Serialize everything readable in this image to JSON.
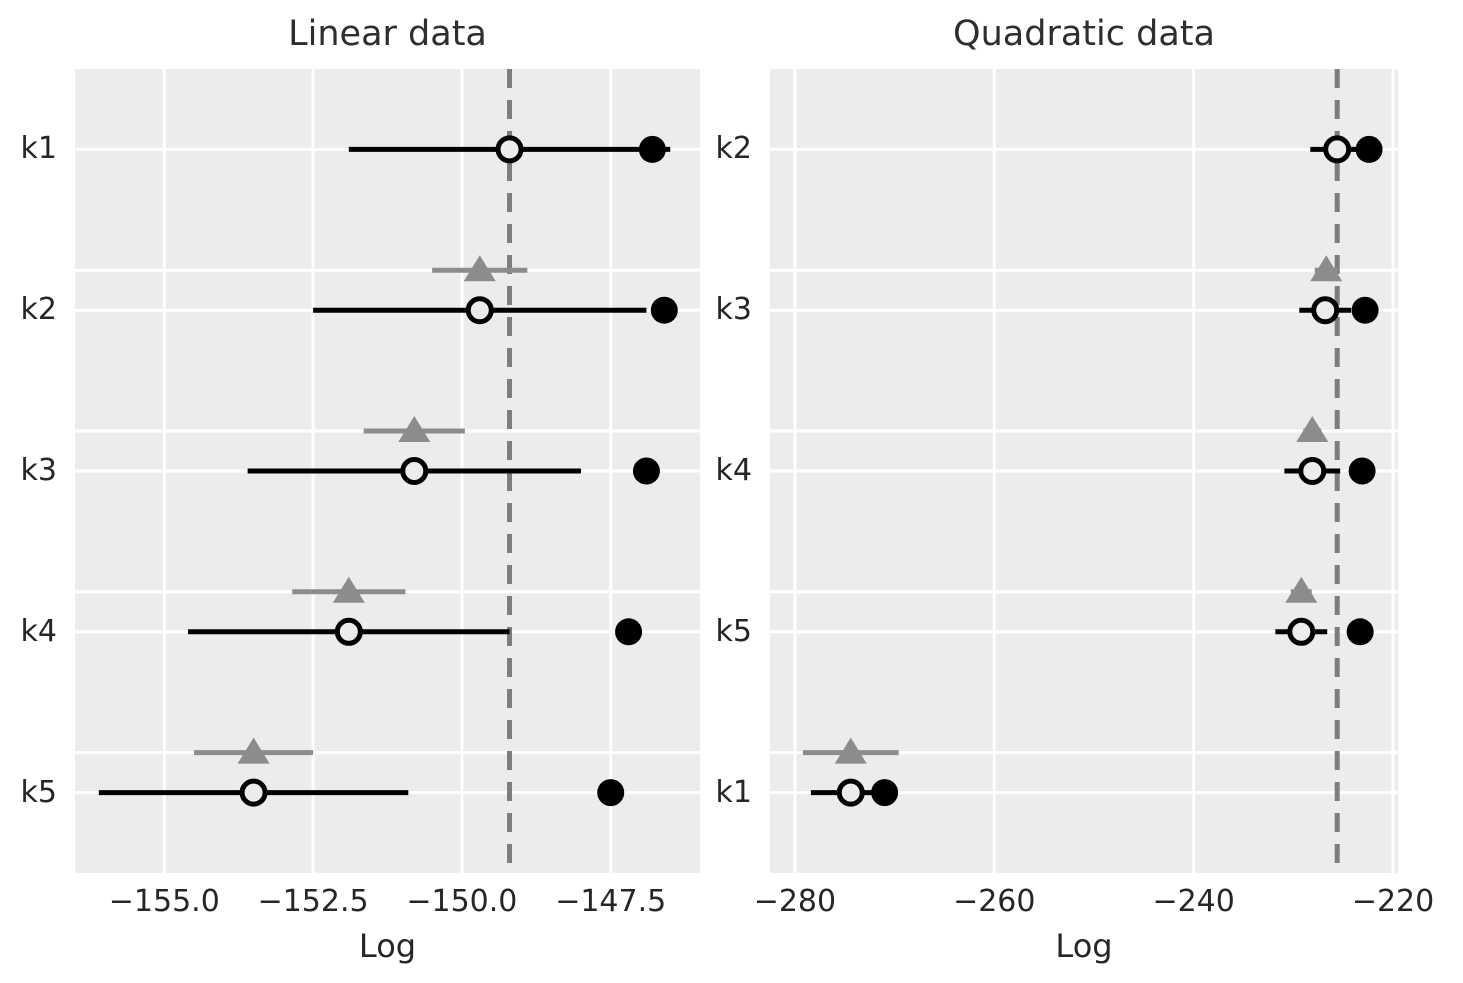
{
  "figure": {
    "background": "#ffffff",
    "description": "Model comparison forest plots: LOO/WAIC (log scale) per model order k1-k5, open circle = out-of-sample elpd with SE bar, filled circle = in-sample elpd, gray triangle = elpd difference vs top-ranked model with its SE, dashed line = elpd of best model"
  },
  "style": {
    "axes_bg": "#ececec",
    "grid_color": "#ffffff",
    "errorbar_color": "#000000",
    "open_circle_stroke": "#000000",
    "filled_circle_color": "#000000",
    "triangle_color": "#8c8c8c",
    "triangle_bar_color": "#8c8c8c",
    "dashed_line_color": "#7d7d7d",
    "text_color": "#262626"
  },
  "chart_data": [
    {
      "type": "scatter",
      "id": "linear",
      "title": "Linear data",
      "xlabel": "Log",
      "xlim": [
        -156.5,
        -146.0
      ],
      "xticks": [
        -155.0,
        -152.5,
        -150.0,
        -147.5
      ],
      "xtick_labels": [
        "−155.0",
        "−152.5",
        "−150.0",
        "−147.5"
      ],
      "categories": [
        "k1",
        "k2",
        "k3",
        "k4",
        "k5"
      ],
      "dashed_vline_x": -149.2,
      "grid": true,
      "legend": false,
      "series": [
        {
          "name": "elpd_loo (open circle)",
          "marker": "open-circle",
          "values": [
            -149.2,
            -149.7,
            -150.8,
            -151.9,
            -153.5
          ],
          "se": [
            2.7,
            2.8,
            2.8,
            2.7,
            2.6
          ]
        },
        {
          "name": "in-sample elpd (filled circle)",
          "marker": "filled-circle",
          "values": [
            -146.8,
            -146.6,
            -146.9,
            -147.2,
            -147.5
          ]
        },
        {
          "name": "elpd difference vs best model (gray triangle)",
          "marker": "triangle",
          "values": [
            null,
            -149.7,
            -150.8,
            -151.9,
            -153.5
          ],
          "se": [
            null,
            0.8,
            0.85,
            0.95,
            1.0
          ]
        }
      ]
    },
    {
      "type": "scatter",
      "id": "quadratic",
      "title": "Quadratic data",
      "xlabel": "Log",
      "xlim": [
        -282.5,
        -219.5
      ],
      "xticks": [
        -280,
        -260,
        -240,
        -220
      ],
      "xtick_labels": [
        "−280",
        "−260",
        "−240",
        "−220"
      ],
      "categories": [
        "k2",
        "k3",
        "k4",
        "k5",
        "k1"
      ],
      "dashed_vline_x": -225.6,
      "grid": true,
      "legend": false,
      "series": [
        {
          "name": "elpd_loo (open circle)",
          "marker": "open-circle",
          "values": [
            -225.6,
            -226.8,
            -228.1,
            -229.2,
            -274.4
          ],
          "se": [
            2.7,
            2.6,
            2.8,
            2.6,
            4.0
          ]
        },
        {
          "name": "in-sample elpd (filled circle)",
          "marker": "filled-circle",
          "values": [
            -222.4,
            -222.8,
            -223.1,
            -223.3,
            -271.0
          ]
        },
        {
          "name": "elpd difference vs best model (gray triangle)",
          "marker": "triangle",
          "values": [
            null,
            -226.7,
            -228.1,
            -229.2,
            -274.4
          ],
          "se": [
            null,
            1.15,
            0.9,
            1.05,
            4.8
          ]
        }
      ]
    }
  ]
}
